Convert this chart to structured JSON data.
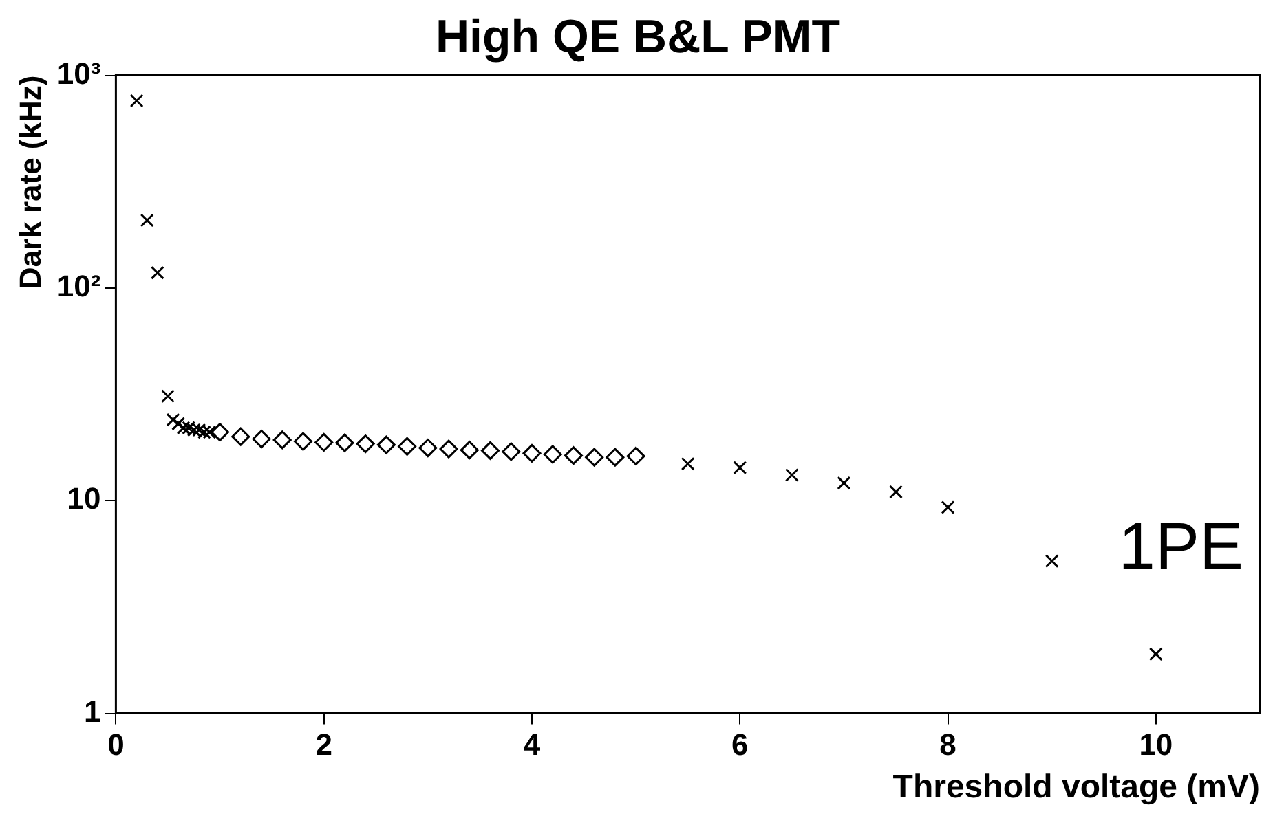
{
  "chart_data": {
    "type": "scatter",
    "title": "High QE B&L PMT",
    "xlabel": "Threshold voltage (mV)",
    "ylabel": "Dark rate (kHz)",
    "annotations": [
      "1PE"
    ],
    "series": [
      {
        "color": "#000000",
        "marker": "cross",
        "x": [
          0.2,
          0.3,
          0.4,
          0.5,
          0.55,
          0.6,
          0.65,
          0.7,
          0.75,
          0.8,
          0.85,
          0.9,
          5.5,
          6,
          6.5,
          7,
          7.5,
          8,
          9,
          10
        ],
        "values": [
          760,
          208,
          118,
          31,
          24,
          23,
          22,
          22,
          21.5,
          21.5,
          21,
          21,
          14.9,
          14.3,
          13.2,
          12.1,
          11,
          9.3,
          5.2,
          1.9
        ]
      },
      {
        "color": "#000000",
        "marker": "diamond",
        "x": [
          1.0,
          1.2,
          1.4,
          1.6,
          1.8,
          2.0,
          2.2,
          2.4,
          2.6,
          2.8,
          3.0,
          3.2,
          3.4,
          3.6,
          3.8,
          4.0,
          4.2,
          4.4,
          4.6,
          4.8,
          5.0
        ],
        "values": [
          21,
          20,
          19.5,
          19.3,
          19,
          18.8,
          18.7,
          18.5,
          18.3,
          18,
          17.7,
          17.5,
          17.3,
          17.2,
          17,
          16.7,
          16.5,
          16.3,
          16,
          16,
          16.2
        ]
      }
    ],
    "log": "y",
    "grid": false,
    "legend": false,
    "xlim": [
      0,
      11
    ],
    "xticks": [
      0,
      2,
      4,
      6,
      8,
      10
    ],
    "ylim": [
      1,
      1000
    ],
    "yticks": [
      {
        "value": 1,
        "label": "1"
      },
      {
        "value": 10,
        "label": "10"
      },
      {
        "value": 100,
        "label": "10²"
      },
      {
        "value": 1000,
        "label": "10³"
      }
    ]
  }
}
